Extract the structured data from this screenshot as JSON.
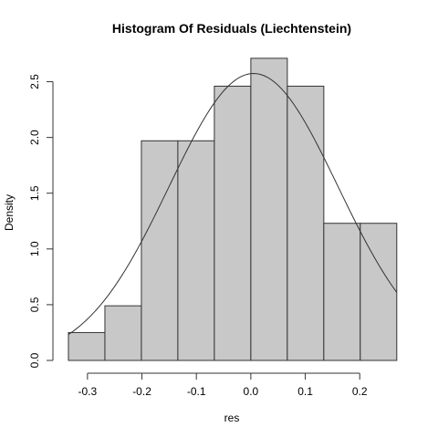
{
  "chart_data": {
    "type": "bar",
    "title": "Histogram Of Residuals (Liechtenstein)",
    "xlabel": "res",
    "ylabel": "Density",
    "xlim": [
      -0.34,
      0.27
    ],
    "ylim": [
      0,
      2.75
    ],
    "xticks": [
      -0.3,
      -0.2,
      -0.1,
      0.0,
      0.1,
      0.2
    ],
    "xtick_labels": [
      "-0.3",
      "-0.2",
      "-0.1",
      "0.0",
      "0.1",
      "0.2"
    ],
    "yticks": [
      0.0,
      0.5,
      1.0,
      1.5,
      2.0,
      2.5
    ],
    "ytick_labels": [
      "0.0",
      "0.5",
      "1.0",
      "1.5",
      "2.0",
      "2.5"
    ],
    "bins": [
      {
        "start": -0.335,
        "end": -0.268,
        "density": 0.25
      },
      {
        "start": -0.268,
        "end": -0.201,
        "density": 0.49
      },
      {
        "start": -0.201,
        "end": -0.134,
        "density": 1.97
      },
      {
        "start": -0.134,
        "end": -0.067,
        "density": 1.97
      },
      {
        "start": -0.067,
        "end": 0.0,
        "density": 2.46
      },
      {
        "start": 0.0,
        "end": 0.067,
        "density": 2.71
      },
      {
        "start": 0.067,
        "end": 0.134,
        "density": 2.46
      },
      {
        "start": 0.134,
        "end": 0.201,
        "density": 1.23
      },
      {
        "start": 0.201,
        "end": 0.268,
        "density": 1.23
      }
    ],
    "density_curve": {
      "type": "normal",
      "mean": 0.005,
      "sd": 0.155
    },
    "grid": false,
    "legend": "none",
    "colors": {
      "bar_fill": "#c8c8c8",
      "stroke": "#333333",
      "background": "#ffffff"
    }
  }
}
